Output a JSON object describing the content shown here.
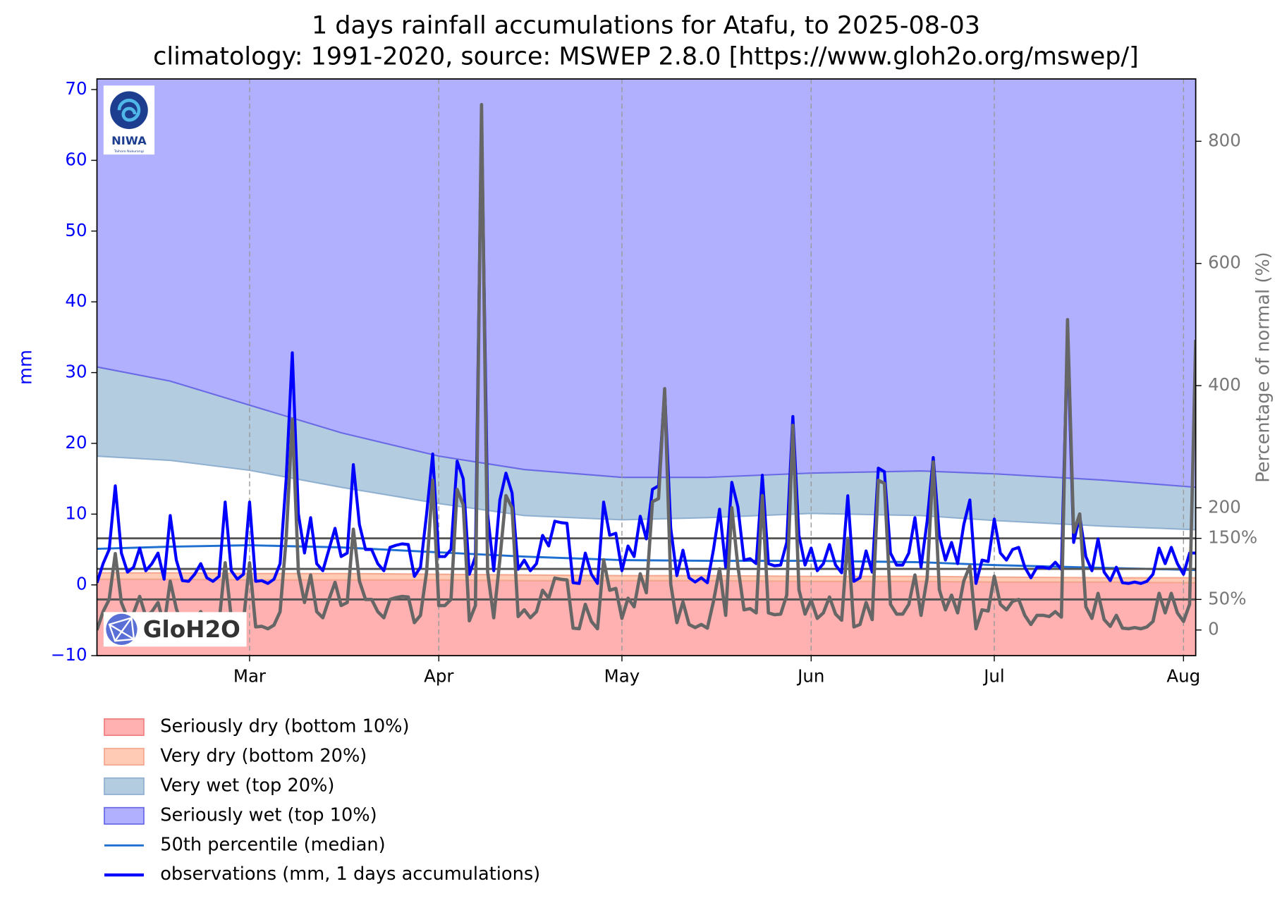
{
  "chart_data": {
    "type": "line",
    "title": "1 days rainfall accumulations for Atafu, to 2025-08-03",
    "subtitle": "climatology: 1991-2020, source: MSWEP 2.8.0 [https://www.gloh2o.org/mswep/]",
    "ylabel": "mm",
    "y2label": "Percentage of normal (%)",
    "xlim": [
      0,
      180
    ],
    "xticks": [
      {
        "value": 25,
        "label": "Mar"
      },
      {
        "value": 56,
        "label": "Apr"
      },
      {
        "value": 86,
        "label": "May"
      },
      {
        "value": 117,
        "label": "Jun"
      },
      {
        "value": 147,
        "label": "Jul"
      },
      {
        "value": 178,
        "label": "Aug"
      }
    ],
    "xgrid": true,
    "ylim": [
      -10,
      71.5
    ],
    "yticks": [
      {
        "value": -10,
        "label": "−10"
      },
      0,
      10,
      20,
      30,
      40,
      50,
      60,
      70
    ],
    "y2lim": [
      -42,
      902
    ],
    "y2ticks": [
      0,
      {
        "value": 50,
        "label": "50%"
      },
      {
        "value": 150,
        "label": "150%"
      },
      200,
      400,
      600,
      800
    ],
    "y2_reference_lines": [
      50,
      100,
      150
    ],
    "clim_x": [
      0,
      12,
      25,
      40,
      56,
      70,
      86,
      100,
      117,
      135,
      147,
      165,
      180
    ],
    "percentiles": {
      "p10": [
        0.8,
        0.8,
        0.7,
        0.7,
        0.7,
        0.6,
        0.6,
        0.6,
        0.5,
        0.5,
        0.4,
        0.4,
        0.3
      ],
      "p20": [
        1.7,
        1.7,
        1.6,
        1.6,
        1.5,
        1.4,
        1.3,
        1.3,
        1.2,
        1.2,
        1.1,
        1.0,
        1.0
      ],
      "p80": [
        18.2,
        17.6,
        16.2,
        13.8,
        11.5,
        9.8,
        9.2,
        9.5,
        10.1,
        9.8,
        9.1,
        8.3,
        7.8
      ],
      "p90": [
        30.8,
        28.8,
        25.4,
        21.5,
        18.2,
        16.3,
        15.2,
        15.2,
        15.8,
        16.1,
        15.7,
        14.8,
        13.8
      ]
    },
    "bands": [
      {
        "name": "Seriously dry (bottom 10%)",
        "color": "#ffb0b0",
        "edge": "#f08080",
        "lower": "bottom",
        "upper": "p10"
      },
      {
        "name": "Very dry (bottom 20%)",
        "color": "#ffcbb5",
        "edge": "#f5a890",
        "lower": "p10",
        "upper": "p20"
      },
      {
        "name": "Very wet (top 20%)",
        "color": "#b4cce0",
        "edge": "#8fb0d0",
        "lower": "p80",
        "upper": "p90"
      },
      {
        "name": "Seriously wet (top 10%)",
        "color": "#b0b0ff",
        "edge": "#6a6ae6",
        "lower": "p90",
        "upper": "top"
      }
    ],
    "median": {
      "name": "50th percentile (median)",
      "color": "#1f6fd0",
      "values": [
        5.1,
        5.4,
        5.6,
        5.3,
        4.6,
        4.0,
        3.5,
        3.4,
        3.4,
        3.2,
        2.8,
        2.4,
        2.1
      ]
    },
    "x": [
      0,
      1,
      2,
      3,
      4,
      5,
      6,
      7,
      8,
      9,
      10,
      11,
      12,
      13,
      14,
      15,
      16,
      17,
      18,
      19,
      20,
      21,
      22,
      23,
      24,
      25,
      26,
      27,
      28,
      29,
      30,
      31,
      32,
      33,
      34,
      35,
      36,
      37,
      38,
      39,
      40,
      41,
      42,
      43,
      44,
      45,
      46,
      47,
      48,
      49,
      50,
      51,
      52,
      53,
      54,
      55,
      56,
      57,
      58,
      59,
      60,
      61,
      62,
      63,
      64,
      65,
      66,
      67,
      68,
      69,
      70,
      71,
      72,
      73,
      74,
      75,
      76,
      77,
      78,
      79,
      80,
      81,
      82,
      83,
      84,
      85,
      86,
      87,
      88,
      89,
      90,
      91,
      92,
      93,
      94,
      95,
      96,
      97,
      98,
      99,
      100,
      101,
      102,
      103,
      104,
      105,
      106,
      107,
      108,
      109,
      110,
      111,
      112,
      113,
      114,
      115,
      116,
      117,
      118,
      119,
      120,
      121,
      122,
      123,
      124,
      125,
      126,
      127,
      128,
      129,
      130,
      131,
      132,
      133,
      134,
      135,
      136,
      137,
      138,
      139,
      140,
      141,
      142,
      143,
      144,
      145,
      146,
      147,
      148,
      149,
      150,
      151,
      152,
      153,
      154,
      155,
      156,
      157,
      158,
      159,
      160,
      161,
      162,
      163,
      164,
      165,
      166,
      167,
      168,
      169,
      170,
      171,
      172,
      173,
      174,
      175,
      176,
      177,
      178,
      179,
      180
    ],
    "series": [
      {
        "name": "observations (mm, 1 days accumulations)",
        "color": "#0000ff",
        "values": [
          0.3,
          3,
          5,
          14,
          4.5,
          1.8,
          2.5,
          5.2,
          2,
          3,
          4.5,
          0.8,
          9.8,
          3.5,
          0.6,
          0.5,
          1.5,
          3,
          1,
          0.5,
          1.2,
          11.7,
          2,
          0.8,
          1.5,
          11.7,
          0.5,
          0.6,
          0.2,
          0.8,
          3,
          15,
          32.8,
          10,
          4.5,
          9.5,
          3,
          2,
          5,
          8,
          4,
          4.5,
          17,
          8.5,
          5,
          5,
          3,
          2,
          5.3,
          5.6,
          5.8,
          5.7,
          1.2,
          2.5,
          10,
          18.5,
          4,
          4,
          5,
          17.5,
          15,
          1.5,
          4,
          66,
          10,
          2,
          12,
          15.8,
          13,
          2.2,
          3.5,
          2,
          3,
          7,
          5.5,
          9,
          8.8,
          8.7,
          0.3,
          0.2,
          4.5,
          1.5,
          0.2,
          11.7,
          7,
          7.3,
          2,
          5.5,
          4,
          9.7,
          6.5,
          13.5,
          14,
          27.5,
          8,
          1.3,
          4.9,
          1,
          0.4,
          1,
          0.3,
          5,
          10.7,
          2.5,
          14.5,
          11,
          3.5,
          3.7,
          3,
          15.5,
          3,
          2.7,
          2.8,
          6,
          23.8,
          7,
          2.8,
          5.2,
          2,
          3,
          5.7,
          2.8,
          1.7,
          12.6,
          0.5,
          1,
          4.8,
          1.8,
          16.5,
          16,
          4.5,
          2.8,
          2.8,
          4.5,
          9.5,
          2.5,
          9,
          18,
          7,
          3.5,
          6,
          3,
          8.5,
          12,
          0.2,
          3.5,
          3.3,
          9.3,
          4.5,
          3.5,
          5,
          5.3,
          2.5,
          1,
          2.5,
          2.5,
          2.3,
          3.2,
          2.2,
          35,
          6,
          9.7,
          4,
          2,
          6.5,
          1.8,
          0.6,
          2.5,
          0.3,
          0.2,
          0.4,
          0.2,
          0.5,
          1.5,
          5.2,
          3,
          5.3,
          3,
          1.5,
          4.5,
          4.5
        ]
      },
      {
        "color": "#666666",
        "axis": "y2",
        "values": [
          0,
          30,
          50,
          125,
          45,
          20,
          28,
          55,
          22,
          30,
          45,
          8,
          80,
          35,
          6,
          5,
          15,
          30,
          10,
          5,
          12,
          110,
          20,
          8,
          15,
          110,
          5,
          6,
          2,
          8,
          30,
          150,
          345,
          95,
          45,
          90,
          30,
          20,
          50,
          78,
          40,
          45,
          165,
          80,
          50,
          50,
          30,
          20,
          50,
          53,
          55,
          54,
          12,
          24,
          95,
          245,
          40,
          40,
          50,
          230,
          205,
          15,
          40,
          860,
          95,
          20,
          115,
          220,
          200,
          22,
          33,
          20,
          30,
          65,
          52,
          85,
          83,
          82,
          3,
          2,
          42,
          14,
          2,
          115,
          65,
          68,
          19,
          52,
          38,
          92,
          61,
          210,
          215,
          395,
          75,
          12,
          46,
          9,
          4,
          9,
          3,
          47,
          100,
          24,
          200,
          104,
          33,
          35,
          28,
          220,
          28,
          25,
          26,
          57,
          335,
          66,
          26,
          49,
          19,
          28,
          54,
          26,
          16,
          150,
          5,
          9,
          45,
          17,
          245,
          240,
          42,
          26,
          26,
          42,
          90,
          24,
          85,
          275,
          66,
          33,
          57,
          28,
          80,
          105,
          2,
          33,
          31,
          88,
          42,
          33,
          47,
          50,
          24,
          9,
          24,
          24,
          22,
          30,
          21,
          508,
          160,
          190,
          38,
          19,
          60,
          17,
          6,
          24,
          3,
          2,
          4,
          2,
          5,
          14,
          60,
          28,
          60,
          28,
          14,
          42,
          475
        ]
      }
    ]
  },
  "logos": {
    "niwa": "NIWA",
    "niwa_sub": "Taihoro Nukurangi",
    "gloh2o": "GloH2O"
  }
}
